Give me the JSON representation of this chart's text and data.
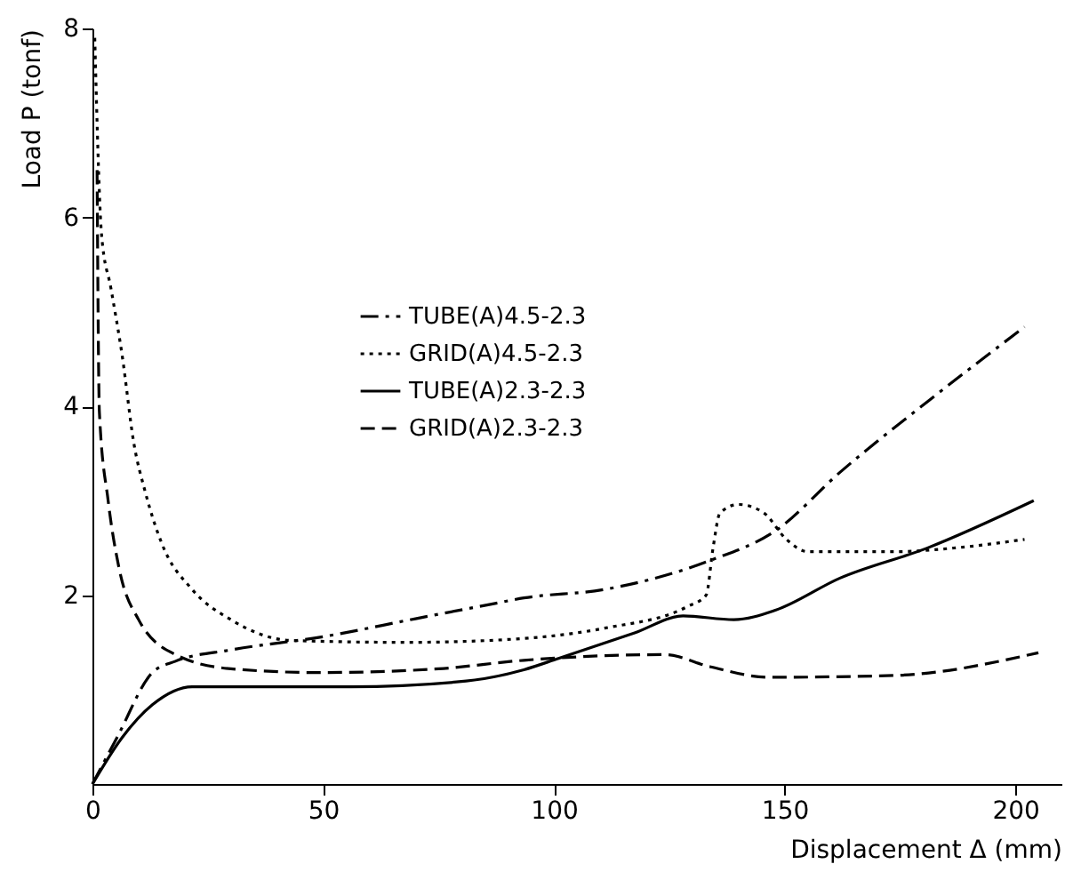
{
  "chart_data": {
    "type": "line",
    "xlabel": "Displacement Δ (mm)",
    "ylabel": "Load P (tonf)",
    "xlim": [
      0,
      210
    ],
    "ylim": [
      0,
      8
    ],
    "xticks": [
      0,
      50,
      100,
      150,
      200
    ],
    "yticks": [
      2,
      4,
      6,
      8
    ],
    "grid": false,
    "legend": "top left",
    "marker": "none",
    "series": [
      {
        "name": "TUBE(A)4.5-2.3",
        "color": "#000000",
        "line_style": "dashdot",
        "x": [
          0,
          5.3,
          13,
          18,
          30,
          50,
          70,
          86,
          93.5,
          111,
          134,
          148,
          162,
          181,
          202
        ],
        "values": [
          0,
          0.49,
          1.18,
          1.3,
          1.42,
          1.56,
          1.75,
          1.9,
          1.97,
          2.06,
          2.37,
          2.68,
          3.3,
          4.05,
          4.84
        ]
      },
      {
        "name": "GRID(A)4.5-2.3",
        "color": "#000000",
        "line_style": "dotted",
        "x": [
          0.5,
          2,
          4,
          6.4,
          9,
          11.4,
          15,
          21.6,
          30,
          43,
          68,
          86,
          111,
          129,
          133,
          134.5,
          136,
          140,
          145.5,
          150.4,
          155,
          174,
          187,
          202
        ],
        "values": [
          7.9,
          5.8,
          5.25,
          4.55,
          3.6,
          3.1,
          2.55,
          2.06,
          1.74,
          1.52,
          1.5,
          1.52,
          1.65,
          1.88,
          2.0,
          2.5,
          2.87,
          2.96,
          2.87,
          2.59,
          2.46,
          2.46,
          2.5,
          2.59
        ]
      },
      {
        "name": "TUBE(A)2.3-2.3",
        "color": "#000000",
        "line_style": "solid",
        "x": [
          0,
          6.4,
          13,
          21.6,
          56,
          81,
          93.5,
          101,
          117.5,
          128,
          139,
          148,
          162,
          181,
          204
        ],
        "values": [
          0,
          0.49,
          0.84,
          1.03,
          1.03,
          1.09,
          1.21,
          1.33,
          1.6,
          1.78,
          1.74,
          1.84,
          2.18,
          2.5,
          3.0
        ]
      },
      {
        "name": "GRID(A)2.3-2.3",
        "color": "#000000",
        "line_style": "dashed",
        "x": [
          1,
          1.5,
          3.4,
          5.7,
          10,
          18,
          30,
          49,
          75,
          93.5,
          124,
          134,
          146.6,
          174,
          205
        ],
        "values": [
          6.5,
          3.94,
          3.0,
          2.3,
          1.74,
          1.37,
          1.22,
          1.18,
          1.22,
          1.31,
          1.37,
          1.24,
          1.13,
          1.15,
          1.39
        ]
      }
    ]
  }
}
